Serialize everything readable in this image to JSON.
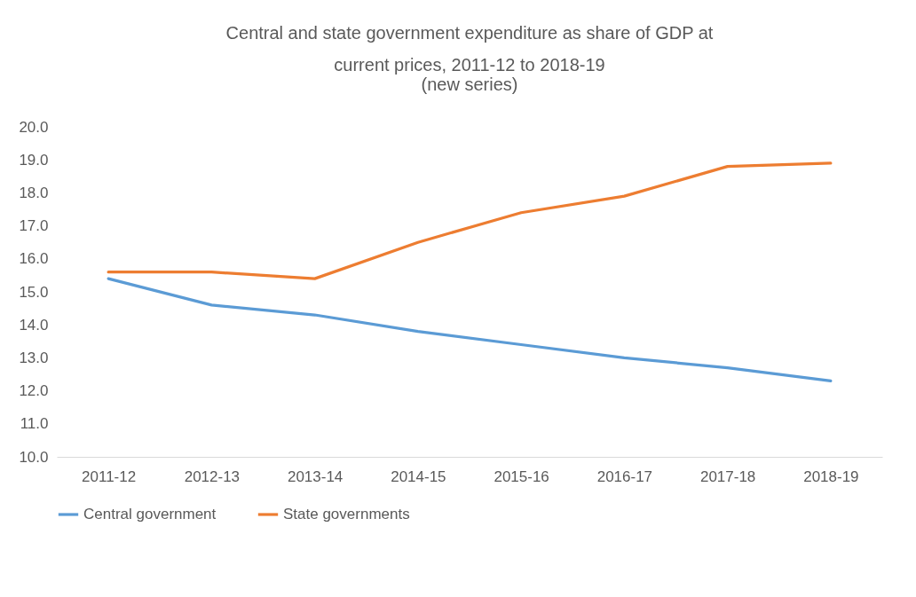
{
  "chart_data": {
    "type": "line",
    "title": "Central and state government expenditure as share of GDP at current prices, 2011-12 to 2018-19",
    "subtitle": "(new series)",
    "categories": [
      "2011-12",
      "2012-13",
      "2013-14",
      "2014-15",
      "2015-16",
      "2016-17",
      "2017-18",
      "2018-19"
    ],
    "series": [
      {
        "name": "Central government",
        "color": "#5b9bd5",
        "values": [
          15.4,
          14.6,
          14.3,
          13.8,
          13.4,
          13.0,
          12.7,
          12.3
        ]
      },
      {
        "name": "State governments",
        "color": "#ed7d31",
        "values": [
          15.6,
          15.6,
          15.4,
          16.5,
          17.4,
          17.9,
          18.8,
          18.9
        ]
      }
    ],
    "ylim": [
      10,
      20
    ],
    "yticks": [
      {
        "value": 10,
        "label": "10.0"
      },
      {
        "value": 11,
        "label": "11.0"
      },
      {
        "value": 12,
        "label": "12.0"
      },
      {
        "value": 13,
        "label": "13.0"
      },
      {
        "value": 14,
        "label": "14.0"
      },
      {
        "value": 15,
        "label": "15.0"
      },
      {
        "value": 16,
        "label": "16.0"
      },
      {
        "value": 17,
        "label": "17.0"
      },
      {
        "value": 18,
        "label": "18.0"
      },
      {
        "value": 19,
        "label": "19.0"
      },
      {
        "value": 20,
        "label": "20.0"
      }
    ],
    "grid": false,
    "legend": "bottom",
    "marker": "none",
    "line_style": "solid"
  }
}
